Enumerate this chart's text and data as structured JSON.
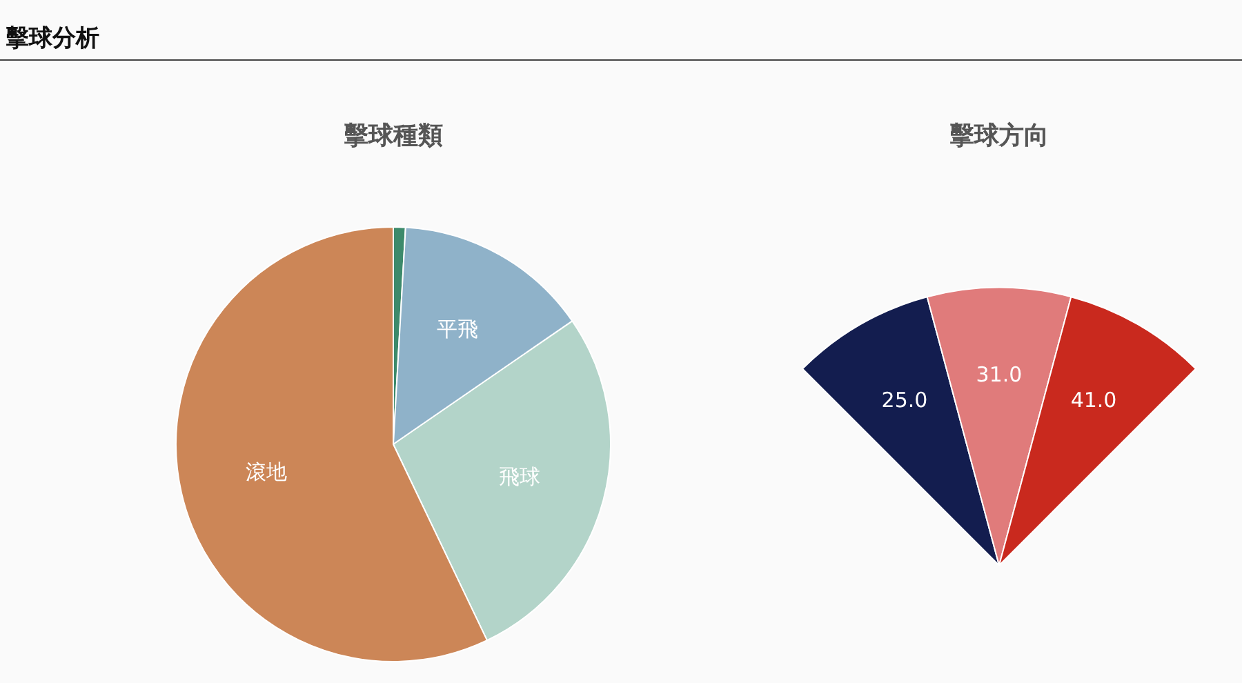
{
  "chart_data": [
    {
      "type": "pie",
      "title": "擊球種類",
      "annotations": [
        "擊球分析"
      ],
      "categories": [
        null,
        "平飛",
        "飛球",
        "滾地"
      ],
      "values": [
        0.9,
        14.5,
        27.5,
        57.1
      ],
      "colors": [
        "#3d8a6b",
        "#8fb2c9",
        "#b3d4c9",
        "#cc8657"
      ]
    },
    {
      "type": "other",
      "title": "擊球方向",
      "categories": [
        null,
        null,
        null
      ],
      "values": [
        25.0,
        31.0,
        41.0
      ],
      "value_labels": [
        "25.0",
        "31.0",
        "41.0"
      ],
      "colors": [
        "#131d4f",
        "#e07b7b",
        "#c9291e"
      ]
    }
  ]
}
